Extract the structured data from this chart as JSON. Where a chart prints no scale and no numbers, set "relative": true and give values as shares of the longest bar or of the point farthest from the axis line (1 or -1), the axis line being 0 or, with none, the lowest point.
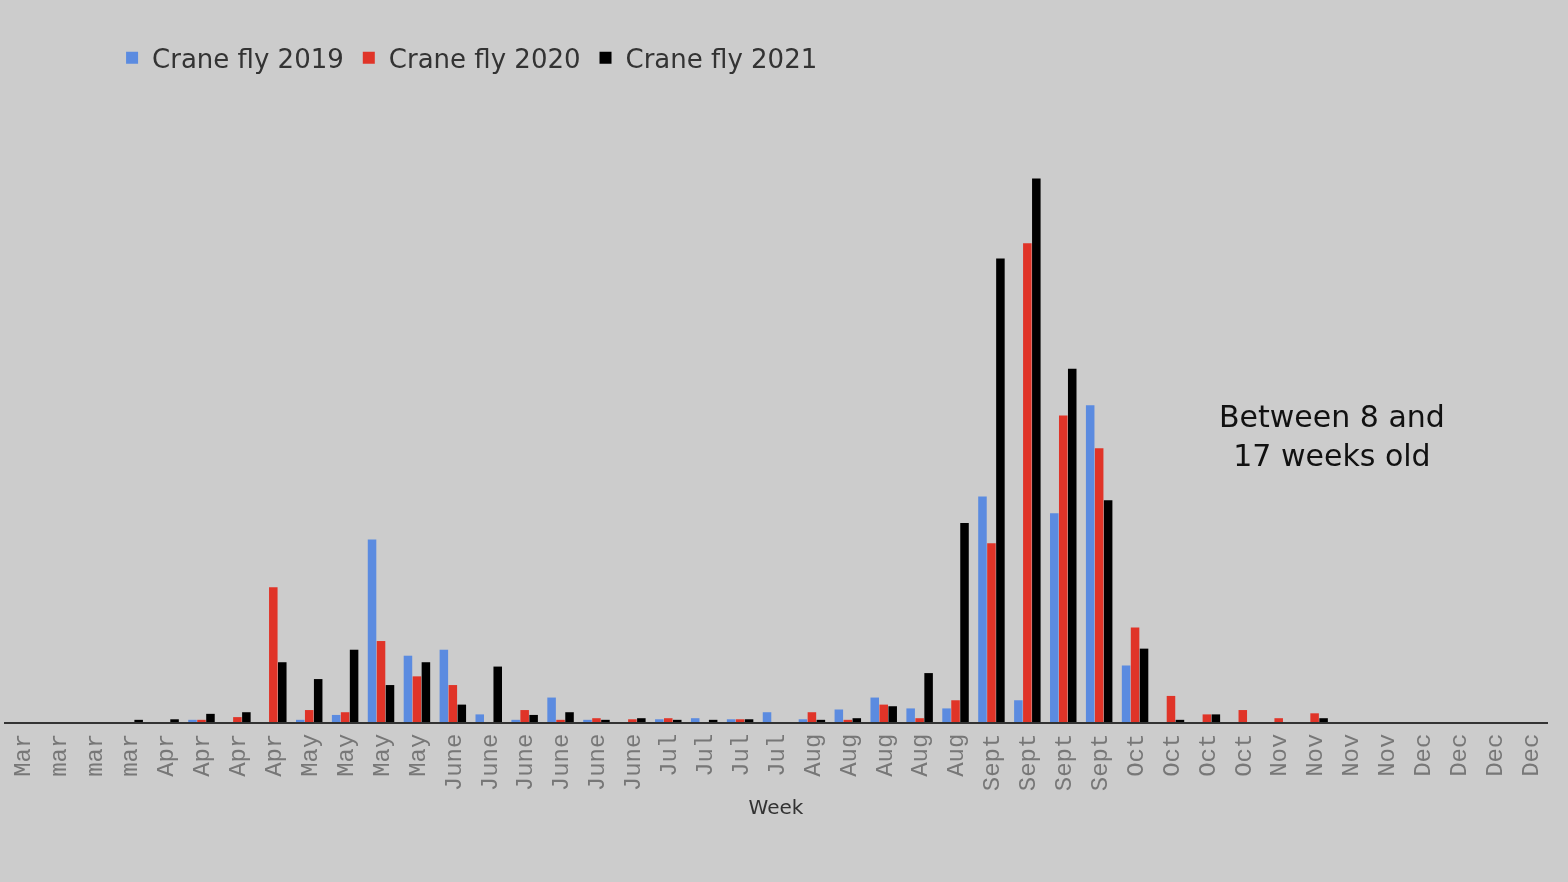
{
  "chart_data": {
    "type": "bar",
    "relative": true,
    "xlabel": "Week",
    "categories": [
      "Mar",
      "mar",
      "mar",
      "mar",
      "Apr",
      "Apr",
      "Apr",
      "Apr",
      "May",
      "May",
      "May",
      "May",
      "June",
      "June",
      "June",
      "June",
      "June",
      "June",
      "Jul",
      "Jul",
      "Jul",
      "Jul",
      "Aug",
      "Aug",
      "Aug",
      "Aug",
      "Aug",
      "Sept",
      "Sept",
      "Sept",
      "Sept",
      "Oct",
      "Oct",
      "Oct",
      "Oct",
      "Nov",
      "Nov",
      "Nov",
      "Nov",
      "Dec",
      "Dec",
      "Dec",
      "Dec"
    ],
    "series": [
      {
        "name": "Crane fly 2019",
        "color": "#5b8be0",
        "values": [
          0,
          0,
          0,
          0,
          0,
          0.004,
          0,
          0,
          0.004,
          0.013,
          0.336,
          0.122,
          0.133,
          0.014,
          0.004,
          0.045,
          0.004,
          0,
          0.005,
          0.007,
          0.005,
          0.018,
          0.005,
          0.023,
          0.045,
          0.025,
          0.025,
          0.415,
          0.04,
          0.384,
          0.583,
          0.104,
          0,
          0,
          0,
          0,
          0,
          0,
          0,
          0,
          0,
          0,
          0
        ]
      },
      {
        "name": "Crane fly 2020",
        "color": "#e03428",
        "values": [
          0,
          0,
          0,
          0,
          0,
          0.004,
          0.009,
          0.248,
          0.022,
          0.018,
          0.149,
          0.084,
          0.068,
          0,
          0.022,
          0.004,
          0.007,
          0.005,
          0.007,
          0,
          0.005,
          0,
          0.018,
          0.004,
          0.032,
          0.007,
          0.04,
          0.329,
          0.881,
          0.564,
          0.504,
          0.174,
          0.048,
          0.014,
          0.022,
          0.007,
          0.016,
          0,
          0,
          0,
          0,
          0,
          0
        ]
      },
      {
        "name": "Crane fly 2021",
        "color": "#000000",
        "values": [
          0,
          0,
          0,
          0.004,
          0.005,
          0.015,
          0.018,
          0.11,
          0.079,
          0.133,
          0.068,
          0.11,
          0.032,
          0.102,
          0.013,
          0.018,
          0.004,
          0.007,
          0.004,
          0.004,
          0.005,
          0,
          0.004,
          0.007,
          0.029,
          0.09,
          0.366,
          0.853,
          1,
          0.65,
          0.408,
          0.135,
          0.004,
          0.014,
          0,
          0,
          0.007,
          0,
          0,
          0,
          0,
          0,
          0
        ]
      }
    ],
    "legend": "top left",
    "annotations": [
      {
        "text": "Between 8 and 17 weeks old"
      }
    ]
  }
}
